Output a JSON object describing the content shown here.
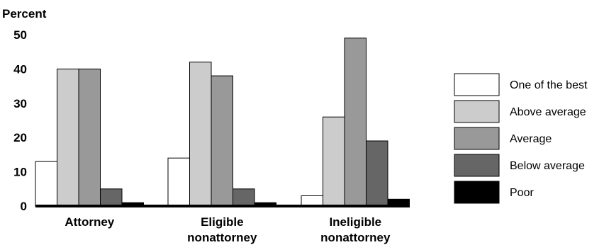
{
  "chart_data": {
    "type": "bar",
    "ylabel": "Percent",
    "ylim": [
      0,
      50
    ],
    "yticks": [
      0,
      10,
      20,
      30,
      40,
      50
    ],
    "grid": false,
    "legend_position": "right",
    "categories": [
      [
        "Attorney"
      ],
      [
        "Eligible",
        "nonattorney"
      ],
      [
        "Ineligible",
        "nonattorney"
      ]
    ],
    "series": [
      {
        "name": "One of the best",
        "color": "#ffffff",
        "values": [
          13,
          14,
          3
        ]
      },
      {
        "name": "Above average",
        "color": "#cccccc",
        "values": [
          40,
          42,
          26
        ]
      },
      {
        "name": "Average",
        "color": "#999999",
        "values": [
          40,
          38,
          49
        ]
      },
      {
        "name": "Below average",
        "color": "#666666",
        "values": [
          5,
          5,
          19
        ]
      },
      {
        "name": "Poor",
        "color": "#000000",
        "values": [
          1,
          1,
          2
        ]
      }
    ]
  }
}
